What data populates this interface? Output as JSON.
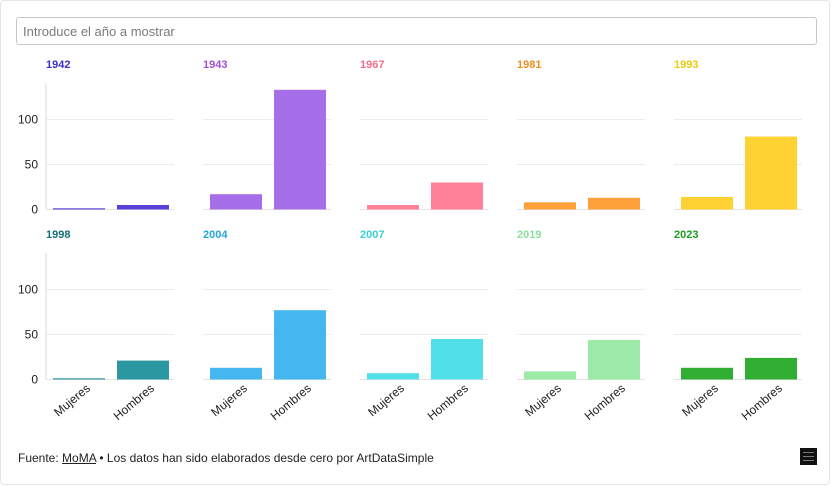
{
  "search": {
    "placeholder": "Introduce el año a mostrar"
  },
  "footer": {
    "prefix": "Fuente: ",
    "link": "MoMA",
    "suffix": " • Los datos han sido elaborados desde cero por ArtDataSimple"
  },
  "chart_data": {
    "type": "bar",
    "layout": "small-multiples",
    "categories": [
      "Mujeres",
      "Hombres"
    ],
    "ylim": [
      0,
      140
    ],
    "yticks": [
      0,
      50,
      100
    ],
    "grid": true,
    "panels": [
      {
        "title": "1942",
        "color": "#5b3fd9",
        "values": [
          1,
          5
        ]
      },
      {
        "title": "1943",
        "color": "#a66fe9",
        "values": [
          17,
          133
        ]
      },
      {
        "title": "1967",
        "color": "#ff8099",
        "values": [
          5,
          30
        ]
      },
      {
        "title": "1981",
        "color": "#fea13a",
        "values": [
          8,
          13
        ]
      },
      {
        "title": "1993",
        "color": "#ffd234",
        "values": [
          14,
          81
        ]
      },
      {
        "title": "1998",
        "color": "#2b97a0",
        "values": [
          1,
          21
        ]
      },
      {
        "title": "2004",
        "color": "#45b7f0",
        "values": [
          13,
          77
        ]
      },
      {
        "title": "2007",
        "color": "#52e0e8",
        "values": [
          7,
          45
        ]
      },
      {
        "title": "2019",
        "color": "#9deaa8",
        "values": [
          9,
          44
        ]
      },
      {
        "title": "2023",
        "color": "#2fae32",
        "values": [
          13,
          24
        ]
      }
    ],
    "title_colors": [
      "#3b30c5",
      "#a04fd6",
      "#ef6f8c",
      "#ef8c22",
      "#eec90f",
      "#13707a",
      "#26a5da",
      "#38d0d8",
      "#8fdf9b",
      "#1d9a22"
    ]
  }
}
